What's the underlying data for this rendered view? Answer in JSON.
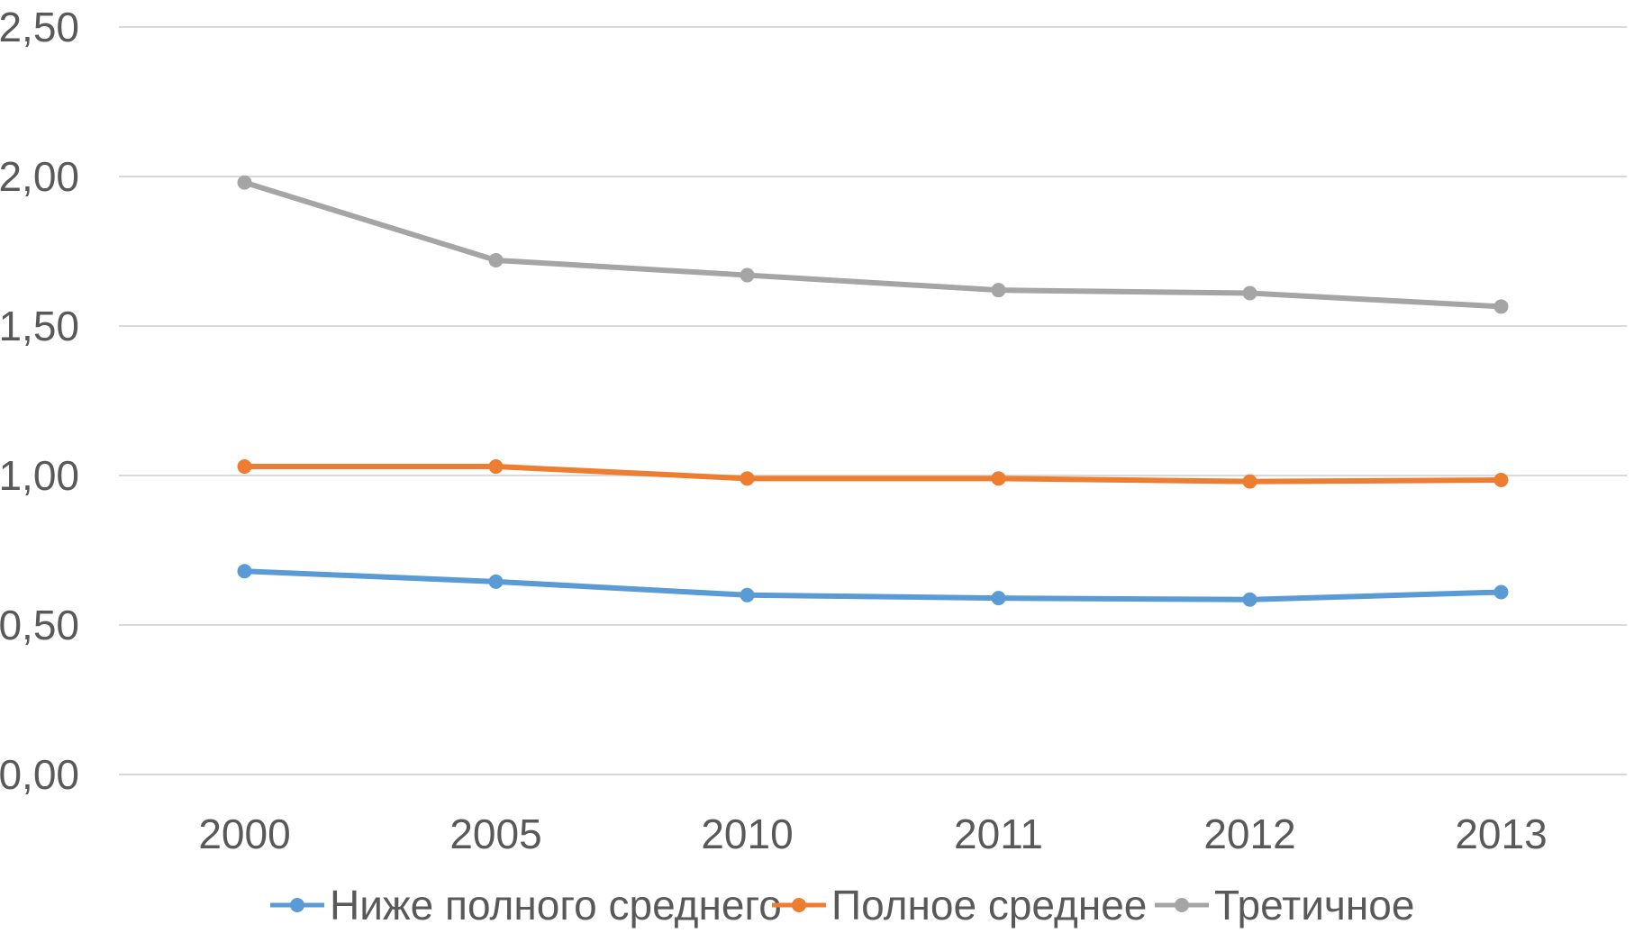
{
  "chart_data": {
    "type": "line",
    "title": "",
    "xlabel": "",
    "ylabel": "",
    "categories": [
      "2000",
      "2005",
      "2010",
      "2011",
      "2012",
      "2013"
    ],
    "ylim": [
      0,
      2.5
    ],
    "y_ticks": [
      "0,00",
      "0,50",
      "1,00",
      "1,50",
      "2,00",
      "2,50"
    ],
    "grid": true,
    "legend_position": "bottom",
    "series": [
      {
        "name": "Ниже полного среднего",
        "color": "#5b9bd5",
        "values": [
          0.68,
          0.645,
          0.6,
          0.59,
          0.585,
          0.61
        ]
      },
      {
        "name": "Полное среднее",
        "color": "#ed7d31",
        "values": [
          1.03,
          1.03,
          0.99,
          0.99,
          0.98,
          0.985
        ]
      },
      {
        "name": "Третичное",
        "color": "#a5a5a5",
        "values": [
          1.98,
          1.72,
          1.67,
          1.62,
          1.61,
          1.565
        ]
      }
    ]
  }
}
